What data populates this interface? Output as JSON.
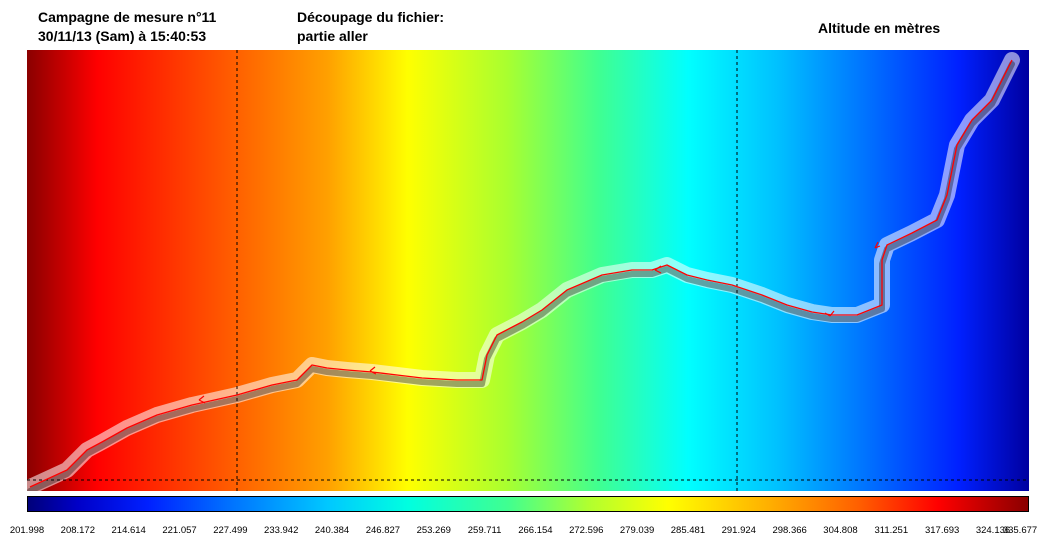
{
  "header": {
    "campaign_line1": "Campagne de mesure n°11",
    "campaign_line2": "30/11/13 (Sam) à 15:40:53",
    "decoupage_line1": "Découpage du fichier:",
    "decoupage_line2": "partie aller",
    "legend_title": "Altitude en mètres"
  },
  "colorbar": {
    "ticks": [
      "201.998",
      "208.172",
      "214.614",
      "221.057",
      "227.499",
      "233.942",
      "240.384",
      "246.827",
      "253.269",
      "259.711",
      "266.154",
      "272.596",
      "279.039",
      "285.481",
      "291.924",
      "298.366",
      "304.808",
      "311.251",
      "317.693",
      "324.136",
      "335.677"
    ],
    "colors": [
      "#00007a",
      "#0000ff",
      "#00c8ff",
      "#40ff90",
      "#ffff00",
      "#ff6000",
      "#ff0000",
      "#8a0000"
    ]
  },
  "map": {
    "track_color": "#ff0000",
    "scale_min": 201.998,
    "scale_max": 335.677
  }
}
